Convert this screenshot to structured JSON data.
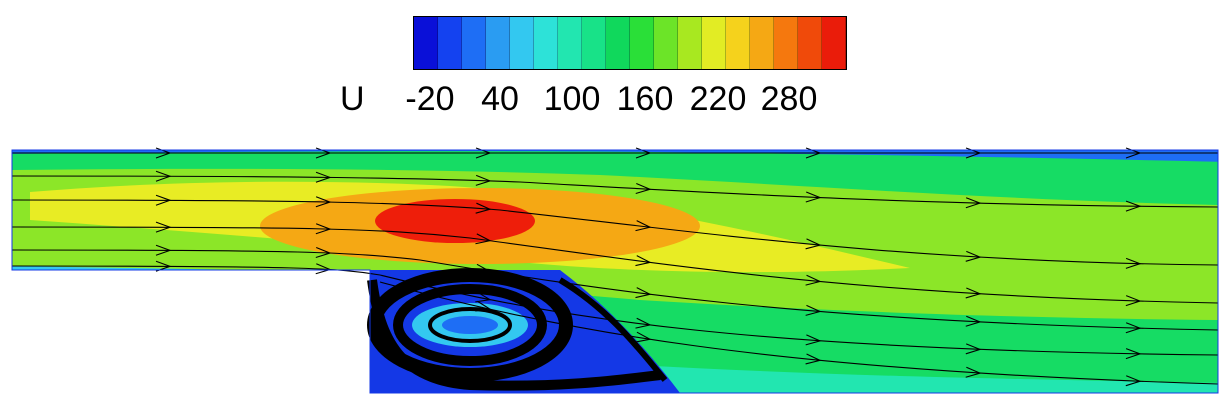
{
  "legend": {
    "variable": "U",
    "ticks": [
      "-20",
      "40",
      "100",
      "160",
      "220",
      "280"
    ],
    "colors": [
      "#0a10d8",
      "#1442f0",
      "#1e6ef5",
      "#2a9cf2",
      "#33c8f0",
      "#2de2d8",
      "#22e6b0",
      "#18e288",
      "#10d85c",
      "#2adf38",
      "#6ce428",
      "#a8e820",
      "#e2ec24",
      "#f5d21c",
      "#f5a814",
      "#f5780e",
      "#f04a0a",
      "#ea1c0a"
    ]
  },
  "field_colors": {
    "deep_blue": "#1438e6",
    "blue": "#1e6ef5",
    "cyan": "#33c8f0",
    "teal": "#22e6b0",
    "green": "#16dc64",
    "lime": "#8ce628",
    "yellow": "#e8ec24",
    "orange": "#f5a814",
    "red": "#ee1e0a"
  }
}
